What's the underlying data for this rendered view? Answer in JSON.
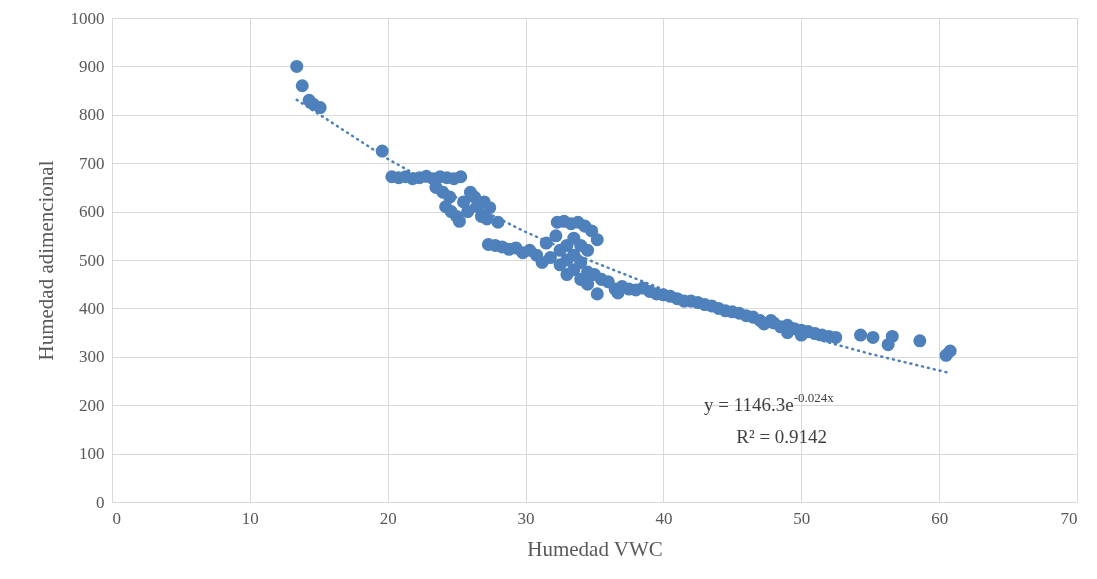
{
  "chart_data": {
    "type": "scatter",
    "xlabel": "Humedad VWC",
    "ylabel": "Humedad adimencional",
    "xlim": [
      0,
      70
    ],
    "xticks": [
      0,
      10,
      20,
      30,
      40,
      50,
      60,
      70
    ],
    "ylim": [
      0,
      1000
    ],
    "yticks": [
      0,
      100,
      200,
      300,
      400,
      500,
      600,
      700,
      800,
      900,
      1000
    ],
    "grid": true,
    "annotations": [
      "y = 1146.3e$^{-0.024x}$",
      "R² = 0.9142"
    ],
    "series": [
      {
        "color": "#4e80bc",
        "marker": "circle",
        "x": [
          13.4,
          13.8,
          14.3,
          14.6,
          15.1,
          19.6,
          20.3,
          20.8,
          21.3,
          21.8,
          22.3,
          22.8,
          23.3,
          23.8,
          24.3,
          24.8,
          25.3,
          23.5,
          24,
          24.5,
          24.2,
          24.6,
          25,
          25.2,
          25.5,
          25.8,
          26,
          26.3,
          26.5,
          26.8,
          27,
          27.2,
          27.4,
          28,
          27.3,
          27.8,
          28.3,
          28.8,
          29.3,
          29.8,
          30.3,
          30.8,
          31.2,
          31.5,
          31.8,
          32.3,
          32.8,
          33.3,
          33.8,
          34.3,
          34.8,
          35.2,
          32.2,
          32.5,
          32.5,
          33,
          33,
          33,
          33.5,
          33.5,
          33.5,
          34,
          34,
          34,
          34.5,
          34.5,
          34.5,
          35,
          35.2,
          35.5,
          36,
          36.5,
          36.7,
          37,
          37.5,
          38,
          38.5,
          39,
          39.5,
          40,
          40.5,
          41,
          41.5,
          42,
          42.5,
          43,
          43.5,
          44,
          44.5,
          45,
          45.5,
          46,
          46.5,
          47,
          47.3,
          47.8,
          48,
          48.5,
          49,
          49,
          49.5,
          50,
          50,
          50.5,
          51,
          51.5,
          52,
          52.5,
          54.3,
          55.2,
          56.3,
          56.6,
          58.6,
          60.5,
          60.8
        ],
        "values": [
          900,
          860,
          830,
          822,
          815,
          725,
          672,
          670,
          672,
          668,
          670,
          673,
          668,
          672,
          670,
          668,
          672,
          650,
          640,
          630,
          610,
          600,
          590,
          580,
          620,
          600,
          640,
          630,
          610,
          590,
          620,
          585,
          608,
          578,
          532,
          530,
          527,
          522,
          525,
          515,
          520,
          510,
          495,
          535,
          505,
          578,
          580,
          575,
          578,
          570,
          560,
          542,
          550,
          520,
          490,
          530,
          500,
          470,
          545,
          510,
          480,
          530,
          495,
          460,
          520,
          475,
          450,
          470,
          430,
          460,
          455,
          440,
          432,
          445,
          440,
          438,
          442,
          435,
          430,
          428,
          425,
          420,
          415,
          415,
          412,
          408,
          405,
          400,
          395,
          393,
          390,
          385,
          382,
          375,
          368,
          375,
          370,
          362,
          365,
          350,
          358,
          355,
          345,
          352,
          348,
          345,
          342,
          340,
          345,
          340,
          325,
          342,
          333,
          303,
          312
        ]
      },
      {
        "type": "line",
        "color": "#4e80bc",
        "marker": "none",
        "line_style": "dotted",
        "x": [
          13.4,
          20,
          25,
          30,
          35,
          40,
          45,
          50,
          55,
          60.7
        ],
        "values": [
          831,
          709,
          629,
          558,
          495,
          439,
          389,
          345,
          306,
          267
        ]
      }
    ]
  }
}
